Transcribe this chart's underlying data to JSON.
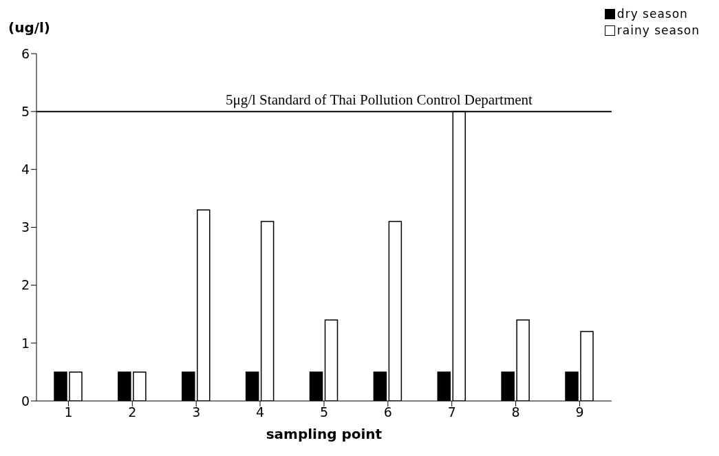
{
  "chart_data": {
    "type": "bar",
    "ylabel": "(ug/l)",
    "xlabel": "sampling point",
    "categories": [
      "1",
      "2",
      "3",
      "4",
      "5",
      "6",
      "7",
      "8",
      "9"
    ],
    "series": [
      {
        "name": "dry season",
        "color": "#000000",
        "values": [
          0.5,
          0.5,
          0.5,
          0.5,
          0.5,
          0.5,
          0.5,
          0.5,
          0.5
        ]
      },
      {
        "name": "rainy season",
        "color": "#ffffff",
        "values": [
          0.5,
          0.5,
          3.3,
          3.1,
          1.4,
          3.1,
          5.0,
          1.4,
          1.2
        ]
      }
    ],
    "ylim": [
      0,
      6
    ],
    "yticks": [
      0,
      1,
      2,
      3,
      4,
      5,
      6
    ],
    "grid": false,
    "legend": "top right",
    "ref_lines": [
      {
        "axis": "y",
        "value": 5,
        "label": "5μg/l Standard of Thai Pollution Control Department",
        "color": "#000000"
      }
    ]
  }
}
